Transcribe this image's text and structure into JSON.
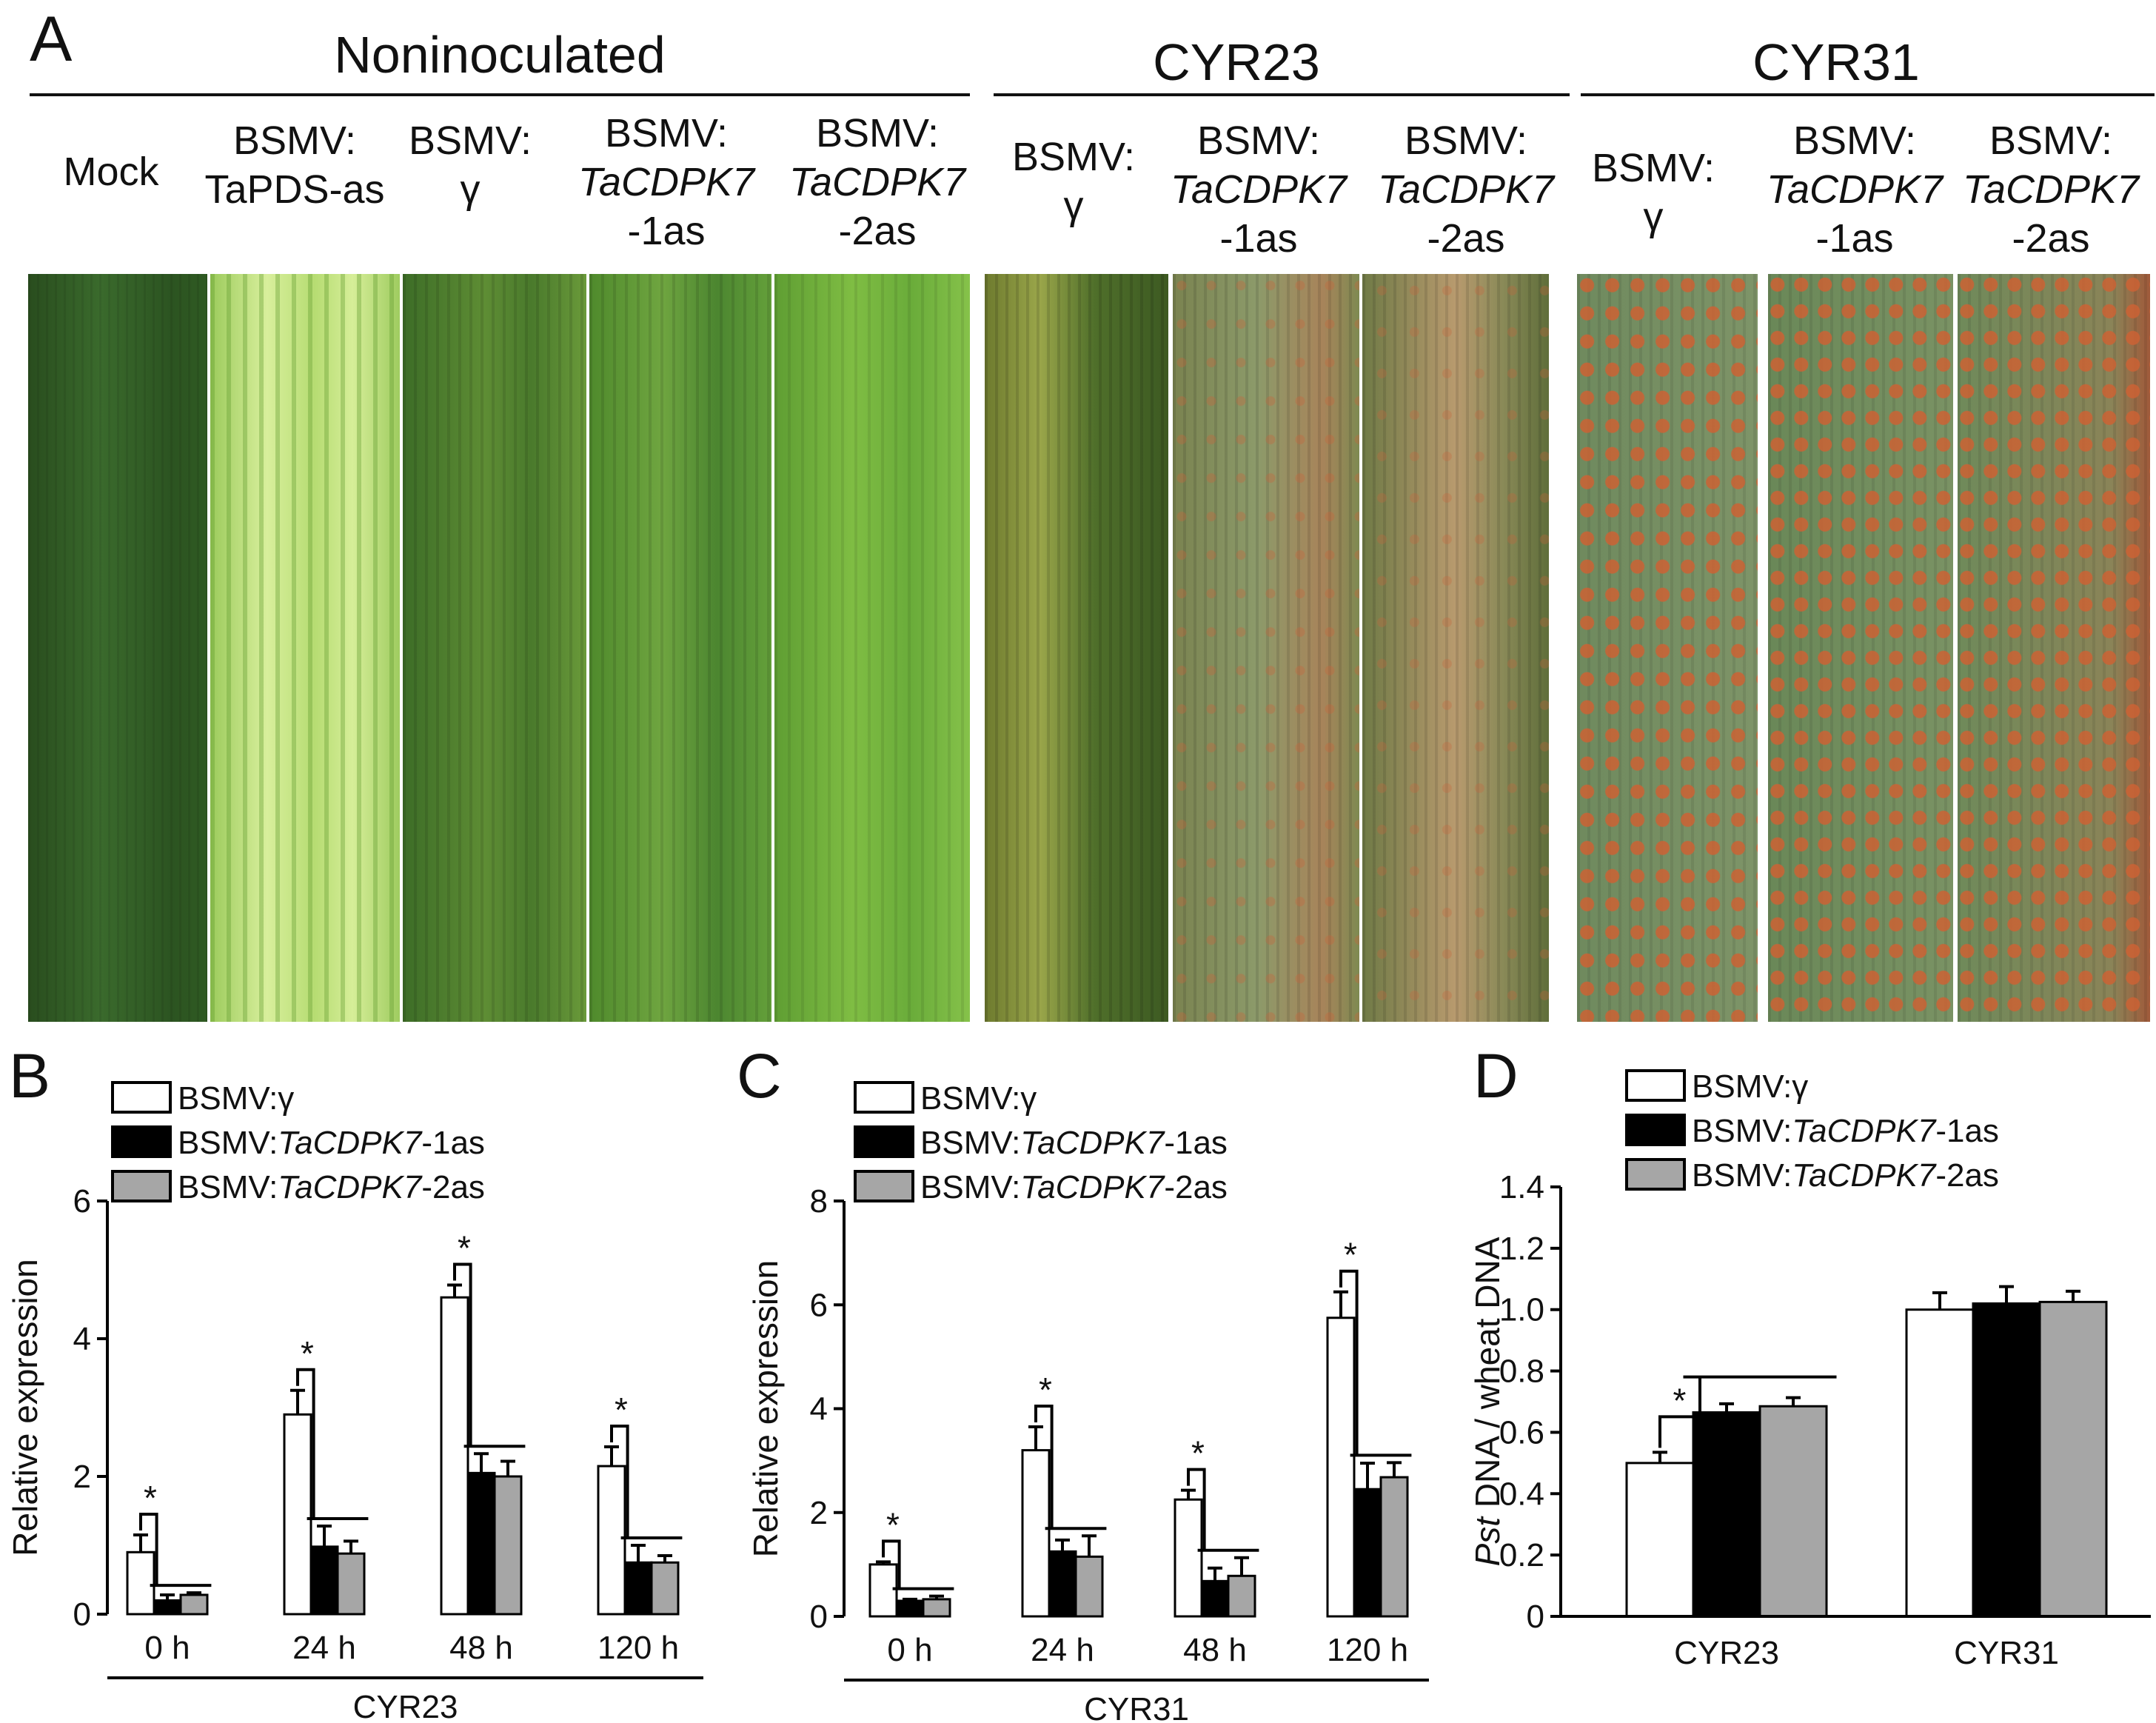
{
  "figure": {
    "panelA": {
      "letter": "A",
      "groups": [
        {
          "title": "Noninoculated"
        },
        {
          "title": "CYR23"
        },
        {
          "title": "CYR31"
        }
      ],
      "labels": [
        {
          "l1": "Mock",
          "l2": "",
          "l3": ""
        },
        {
          "l1": "BSMV:",
          "l2": "TaPDS-as",
          "l3": ""
        },
        {
          "l1": "BSMV:",
          "l2": "γ",
          "l3": ""
        },
        {
          "l1": "BSMV:",
          "l2": "TaCDPK7",
          "l3": "-1as"
        },
        {
          "l1": "BSMV:",
          "l2": "TaCDPK7",
          "l3": "-2as"
        },
        {
          "l1": "BSMV:",
          "l2": "γ",
          "l3": ""
        },
        {
          "l1": "BSMV:",
          "l2": "TaCDPK7",
          "l3": "-1as"
        },
        {
          "l1": "BSMV:",
          "l2": "TaCDPK7",
          "l3": "-2as"
        },
        {
          "l1": "BSMV:",
          "l2": "γ",
          "l3": ""
        },
        {
          "l1": "BSMV:",
          "l2": "TaCDPK7",
          "l3": "-1as"
        },
        {
          "l1": "BSMV:",
          "l2": "TaCDPK7",
          "l3": "-2as"
        }
      ]
    },
    "colors": {
      "white_bar": "#ffffff",
      "black_bar": "#000000",
      "gray_bar": "#a6a6a6",
      "leaf_dark": "#2f5a22",
      "leaf_light": "#c8e58a",
      "rust": "#c8643a"
    },
    "legend": {
      "gamma_prefix": "BSMV:",
      "gamma_suffix": "γ",
      "one_prefix": "BSMV:",
      "one_gene": "TaCDPK7",
      "one_suffix": "-1as",
      "two_prefix": "BSMV:",
      "two_gene": "TaCDPK7",
      "two_suffix": "-2as"
    }
  },
  "chart_data": [
    {
      "panel": "B",
      "type": "bar",
      "ylabel": "Relative expression",
      "xlabel": "CYR23",
      "ylim": [
        0,
        6
      ],
      "yticks": [
        "0",
        "2",
        "4",
        "6"
      ],
      "categories": [
        "0 h",
        "24 h",
        "48 h",
        "120 h"
      ],
      "series": [
        {
          "name": "BSMV:γ",
          "values": [
            0.9,
            2.9,
            4.6,
            2.15
          ],
          "errors": [
            0.25,
            0.35,
            0.18,
            0.28
          ]
        },
        {
          "name": "BSMV:TaCDPK7-1as",
          "values": [
            0.2,
            0.98,
            2.05,
            0.75
          ],
          "errors": [
            0.08,
            0.3,
            0.28,
            0.25
          ]
        },
        {
          "name": "BSMV:TaCDPK7-2as",
          "values": [
            0.28,
            0.88,
            2.0,
            0.75
          ],
          "errors": [
            0.03,
            0.18,
            0.22,
            0.1
          ]
        }
      ],
      "significance": [
        "*",
        "*",
        "*",
        "*"
      ]
    },
    {
      "panel": "C",
      "type": "bar",
      "ylabel": "Relative expression",
      "xlabel": "CYR31",
      "ylim": [
        0,
        8
      ],
      "yticks": [
        "0",
        "2",
        "4",
        "6",
        "8"
      ],
      "categories": [
        "0 h",
        "24 h",
        "48 h",
        "120 h"
      ],
      "series": [
        {
          "name": "BSMV:γ",
          "values": [
            1.0,
            3.2,
            2.25,
            5.75
          ],
          "errors": [
            0.05,
            0.45,
            0.18,
            0.5
          ]
        },
        {
          "name": "BSMV:TaCDPK7-1as",
          "values": [
            0.3,
            1.25,
            0.68,
            2.45
          ],
          "errors": [
            0.03,
            0.22,
            0.25,
            0.5
          ]
        },
        {
          "name": "BSMV:TaCDPK7-2as",
          "values": [
            0.33,
            1.15,
            0.78,
            2.68
          ],
          "errors": [
            0.06,
            0.4,
            0.35,
            0.28
          ]
        }
      ],
      "significance": [
        "*",
        "*",
        "*",
        "*"
      ]
    },
    {
      "panel": "D",
      "type": "bar",
      "ylabel_italic": "Pst",
      "ylabel": " DNA / wheat DNA",
      "ylim": [
        0,
        1.4
      ],
      "yticks": [
        "0",
        "0.2",
        "0.4",
        "0.6",
        "0.8",
        "1.0",
        "1.2",
        "1.4"
      ],
      "categories": [
        "CYR23",
        "CYR31"
      ],
      "series": [
        {
          "name": "BSMV:γ",
          "values": [
            0.5,
            1.0
          ],
          "errors": [
            0.035,
            0.055
          ]
        },
        {
          "name": "BSMV:TaCDPK7-1as",
          "values": [
            0.665,
            1.02
          ],
          "errors": [
            0.028,
            0.055
          ]
        },
        {
          "name": "BSMV:TaCDPK7-2as",
          "values": [
            0.685,
            1.025
          ],
          "errors": [
            0.028,
            0.035
          ]
        }
      ],
      "significance": [
        "*"
      ]
    }
  ]
}
